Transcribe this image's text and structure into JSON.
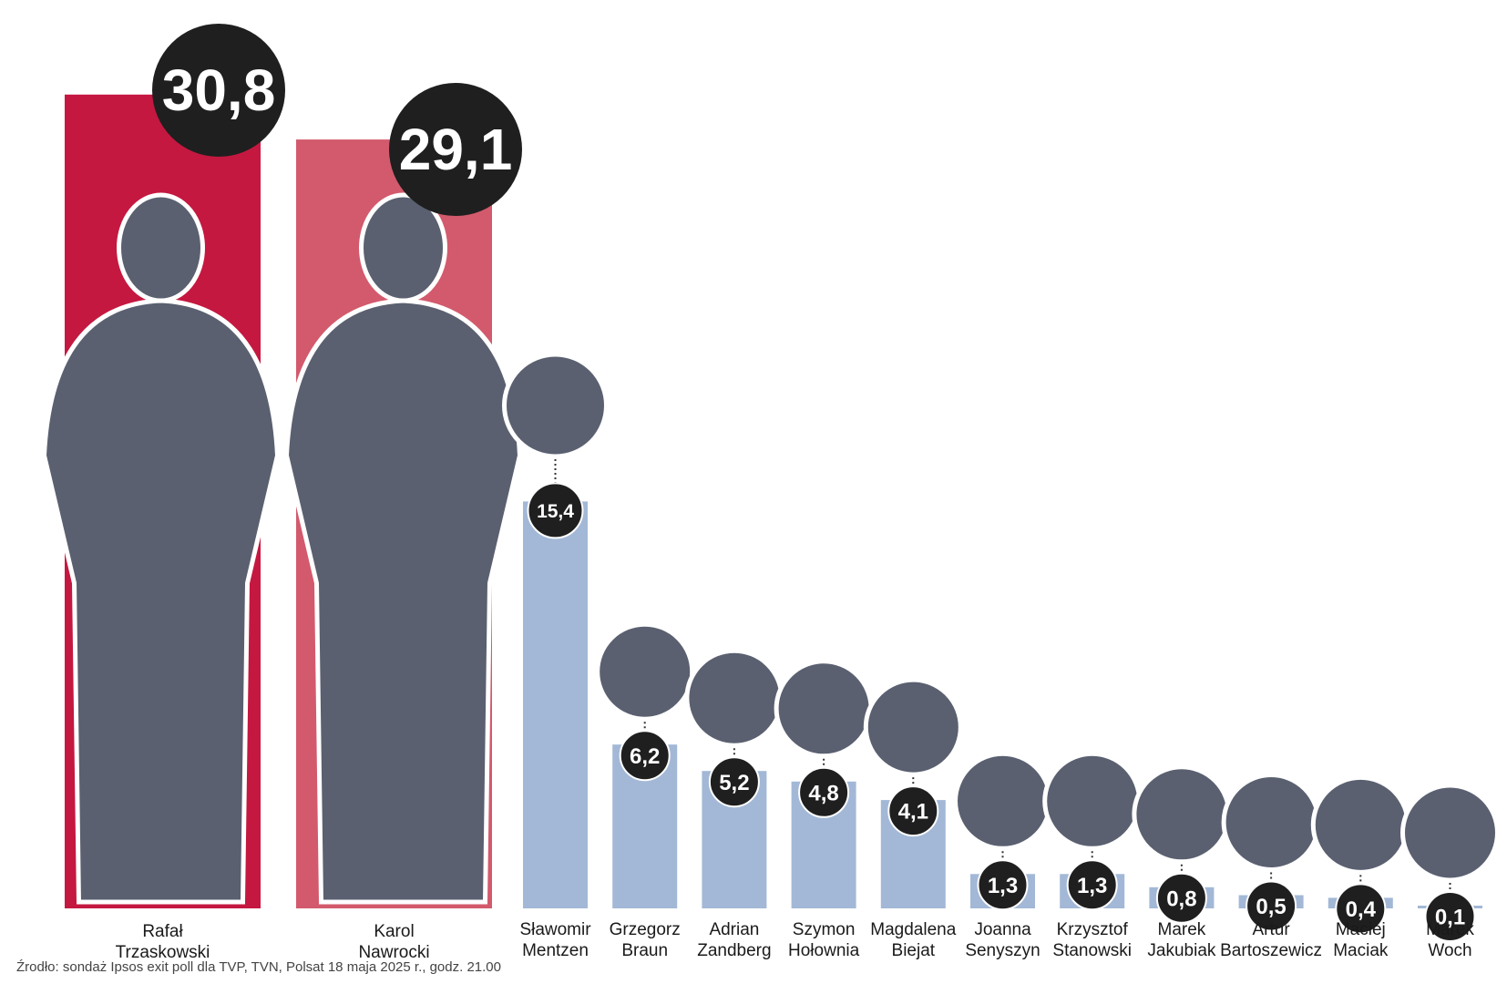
{
  "chart_data": {
    "type": "bar",
    "unit": "%",
    "ylim": [
      0,
      31
    ],
    "grid": false,
    "categories": [
      "Rafał Trzaskowski",
      "Karol Nawrocki",
      "Sławomir Mentzen",
      "Grzegorz Braun",
      "Adrian Zandberg",
      "Szymon Hołownia",
      "Magdalena Biejat",
      "Joanna Senyszyn",
      "Krzysztof Stanowski",
      "Marek Jakubiak",
      "Artur Bartoszewicz",
      "Maciej Maciak",
      "Marek Woch"
    ],
    "label_lines": [
      [
        "Rafał",
        "Trzaskowski"
      ],
      [
        "Karol",
        "Nawrocki"
      ],
      [
        "Sławomir",
        "Mentzen"
      ],
      [
        "Grzegorz",
        "Braun"
      ],
      [
        "Adrian",
        "Zandberg"
      ],
      [
        "Szymon",
        "Hołownia"
      ],
      [
        "Magdalena",
        "Biejat"
      ],
      [
        "Joanna",
        "Senyszyn"
      ],
      [
        "Krzysztof",
        "Stanowski"
      ],
      [
        "Marek",
        "Jakubiak"
      ],
      [
        "Artur",
        "Bartoszewicz"
      ],
      [
        "Maciej",
        "Maciak"
      ],
      [
        "Marek",
        "Woch"
      ]
    ],
    "values": [
      30.8,
      29.1,
      15.4,
      6.2,
      5.2,
      4.8,
      4.1,
      1.3,
      1.3,
      0.8,
      0.5,
      0.4,
      0.1
    ],
    "value_labels": [
      "30,8",
      "29,1",
      "15,4",
      "6,2",
      "5,2",
      "4,8",
      "4,1",
      "1,3",
      "1,3",
      "0,8",
      "0,5",
      "0,4",
      "0,1"
    ],
    "colors": {
      "first": "#c41840",
      "second": "#d25a6c",
      "others": "#a3b8d6",
      "badge": "#1f1f1f",
      "badge_text": "#ffffff",
      "photo_placeholder": "#5a6070"
    }
  },
  "source_note": "Źrodło: sondaż Ipsos exit poll dla TVP, TVN, Polsat 18 maja 2025 r., godz. 21.00"
}
